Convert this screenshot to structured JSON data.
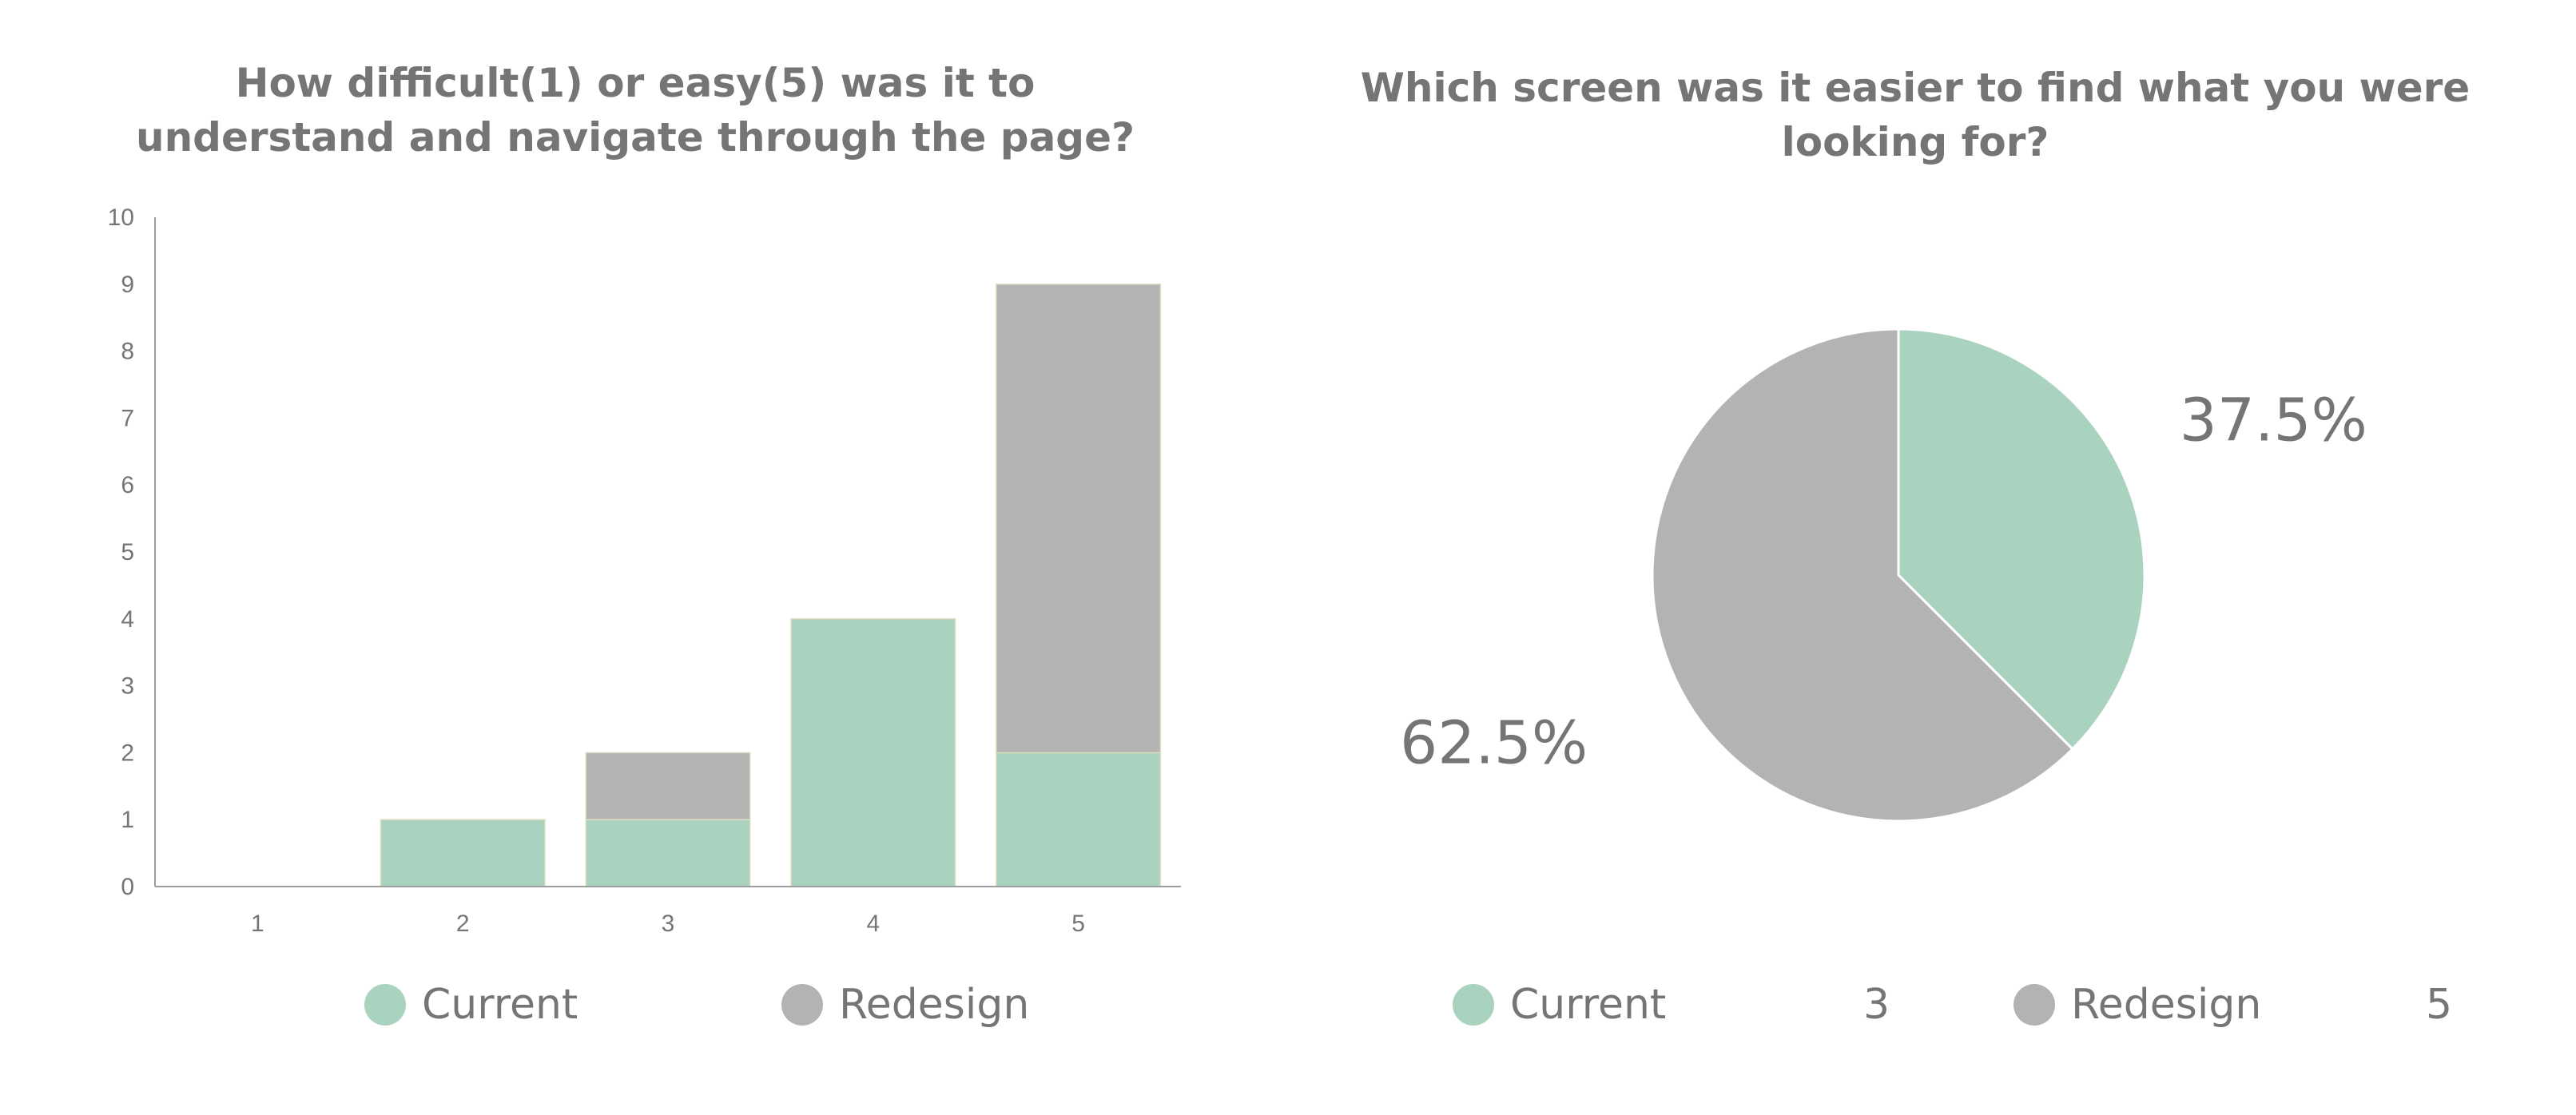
{
  "colors": {
    "current": "#a9d3be",
    "redesign": "#b3b3b3",
    "text": "#757575",
    "axis": "#9e9e9e"
  },
  "legend": {
    "current_label": "Current",
    "redesign_label": "Redesign"
  },
  "pie_legend": {
    "current_value": "3",
    "redesign_value": "5"
  },
  "chart_data": [
    {
      "type": "bar",
      "stacked": true,
      "title": "How difficult(1) or easy(5) was it to understand and navigate through the page?",
      "xlabel": "",
      "ylabel": "",
      "categories": [
        "1",
        "2",
        "3",
        "4",
        "5"
      ],
      "ylim": [
        0,
        10
      ],
      "yticks": [
        "0",
        "1",
        "2",
        "3",
        "4",
        "5",
        "6",
        "7",
        "8",
        "9",
        "10"
      ],
      "series": [
        {
          "name": "Current",
          "values": [
            0,
            1,
            1,
            4,
            2
          ]
        },
        {
          "name": "Redesign",
          "values": [
            0,
            0,
            1,
            0,
            7
          ]
        }
      ],
      "grid": false,
      "legend_position": "bottom"
    },
    {
      "type": "pie",
      "title": "Which screen was it easier to find what you were looking for?",
      "labels": [
        "Current",
        "Redesign"
      ],
      "values": [
        3,
        5
      ],
      "percent_labels": [
        "37.5%",
        "62.5%"
      ],
      "legend_position": "bottom"
    }
  ]
}
